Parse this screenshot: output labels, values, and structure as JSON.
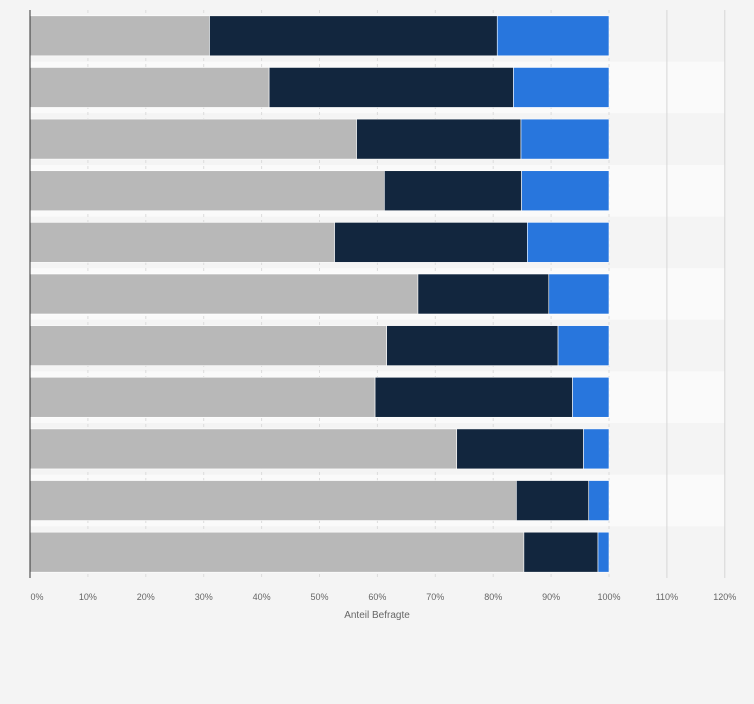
{
  "chart_data": {
    "type": "bar",
    "orientation": "horizontal",
    "stacked": true,
    "xlabel": "Anteil Befragte",
    "xlim": [
      0,
      120
    ],
    "xticks": [
      0,
      10,
      20,
      30,
      40,
      50,
      60,
      70,
      80,
      90,
      100,
      110,
      120
    ],
    "tick_suffix": "%",
    "grid": true,
    "legend": "none",
    "categories": [
      "",
      "",
      "",
      "",
      "",
      "",
      "",
      "",
      "",
      "",
      ""
    ],
    "series": [
      {
        "color": "#b8b8b8",
        "values": [
          31,
          41.3,
          56.4,
          61.2,
          52.6,
          67,
          61.6,
          59.6,
          73.7,
          84,
          85.3
        ]
      },
      {
        "color": "#12263e",
        "values": [
          49.7,
          42.2,
          28.4,
          23.7,
          33.3,
          22.6,
          29.6,
          34.1,
          21.9,
          12.5,
          12.8
        ]
      },
      {
        "color": "#2876dd",
        "values": [
          19.3,
          16.5,
          15.2,
          15.1,
          14.1,
          10.4,
          8.8,
          6.3,
          4.4,
          3.5,
          1.9
        ]
      }
    ]
  }
}
